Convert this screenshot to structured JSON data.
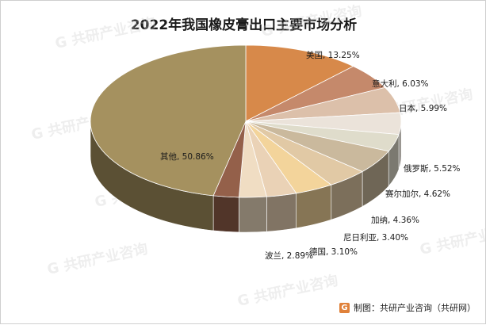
{
  "chart_data": {
    "type": "pie",
    "title": "2022年我国橡皮膏出口主要市场分析",
    "slices": [
      {
        "label": "美国",
        "value": 13.25,
        "text": "13.25%",
        "color": "#d7894a"
      },
      {
        "label": "意大利",
        "value": 6.03,
        "text": "6.03%",
        "color": "#c5896b"
      },
      {
        "label": "日本",
        "value": 5.99,
        "text": "5.99%",
        "color": "#dcc0aa"
      },
      {
        "label": "",
        "value": 5.0,
        "text": "",
        "color": "#ebe3da"
      },
      {
        "label": "",
        "value": 4.0,
        "text": "",
        "color": "#dfdccb"
      },
      {
        "label": "俄罗斯",
        "value": 5.52,
        "text": "5.52%",
        "color": "#cab99d"
      },
      {
        "label": "赛尔加尔",
        "value": 4.62,
        "text": "4.62%",
        "color": "#e1c9a5"
      },
      {
        "label": "加纳",
        "value": 4.36,
        "text": "4.36%",
        "color": "#f3d49b"
      },
      {
        "label": "尼日利亚",
        "value": 3.4,
        "text": "3.40%",
        "color": "#ead2b6"
      },
      {
        "label": "德国",
        "value": 3.1,
        "text": "3.10%",
        "color": "#f0ddc3"
      },
      {
        "label": "波兰",
        "value": 2.89,
        "text": "2.89%",
        "color": "#94604a"
      },
      {
        "label": "其他",
        "value": 50.86,
        "text": "50.86%",
        "color": "#a5915f"
      }
    ]
  },
  "watermark_text": "共研产业咨询",
  "watermark_url": "www.gonyn.com",
  "source_text": "制图：共研产业咨询（共研网）",
  "source_logo": "G"
}
